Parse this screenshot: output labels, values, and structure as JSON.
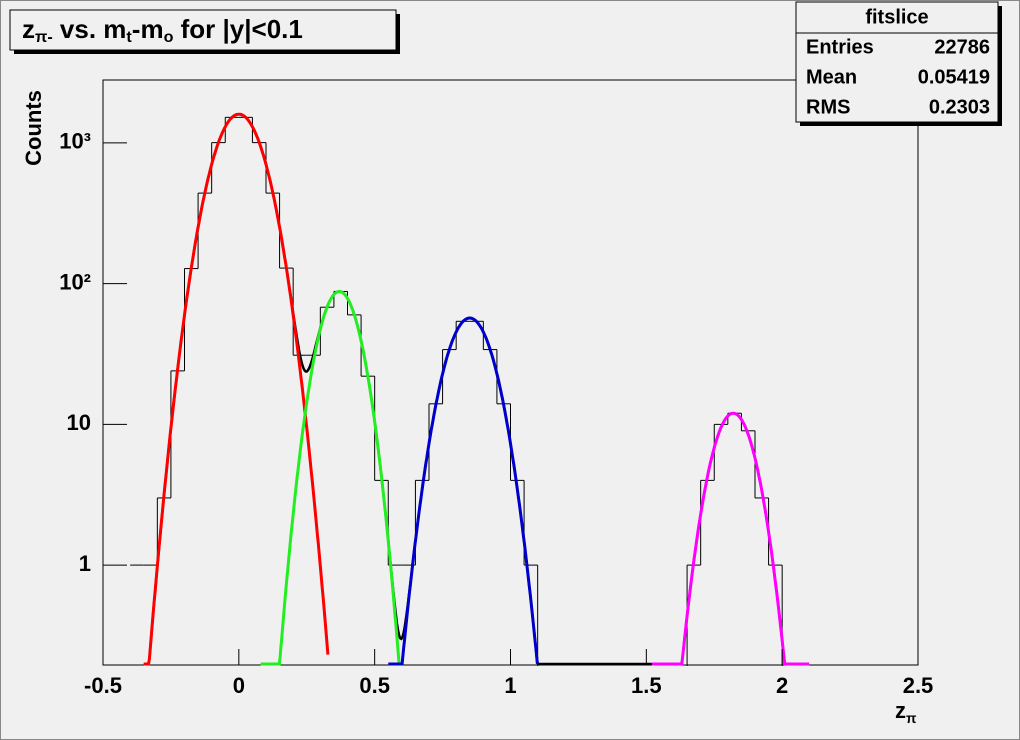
{
  "chart_data": {
    "type": "histogram",
    "title": [
      {
        "text": "z"
      },
      {
        "text": "π-",
        "sub": true
      },
      {
        "text": " vs. m"
      },
      {
        "text": "t",
        "sub": true
      },
      {
        "text": "-m"
      },
      {
        "text": "o",
        "sub": true
      },
      {
        "text": " for |y|<0.1"
      }
    ],
    "x_label": [
      {
        "text": "z"
      },
      {
        "text": "π",
        "sub": true
      }
    ],
    "y_label": "Counts",
    "log_y": true,
    "xlim": [
      -0.5,
      2.5
    ],
    "xticks": [
      -0.5,
      0,
      0.5,
      1,
      1.5,
      2,
      2.5
    ],
    "ylim": [
      0.195,
      2800
    ],
    "yticks": [
      1,
      10,
      {
        "value": 100,
        "label": "10²"
      },
      {
        "value": 1000,
        "label": "10³"
      }
    ],
    "bins": [
      -0.4,
      -0.35,
      -0.3,
      -0.25,
      -0.2,
      -0.15,
      -0.1,
      -0.05,
      0,
      0.05,
      0.1,
      0.15,
      0.2,
      0.25,
      0.3,
      0.35,
      0.4,
      0.45,
      0.5,
      0.55,
      0.6,
      0.65,
      0.7,
      0.75,
      0.8,
      0.85,
      0.9,
      0.95,
      1,
      1.05,
      1.1,
      1.15,
      1.2,
      1.25,
      1.3,
      1.35,
      1.4,
      1.45,
      1.5,
      1.55,
      1.6,
      1.65,
      1.7,
      1.75,
      1.8,
      1.85,
      1.9,
      1.95,
      2,
      2.05,
      2.1
    ],
    "counts": [
      1,
      1,
      3,
      24,
      128,
      440,
      1005,
      1520,
      1520,
      1005,
      440,
      129,
      31,
      31,
      68,
      88,
      60,
      22,
      4,
      1,
      1,
      4,
      14,
      34,
      54,
      54,
      34,
      14,
      4,
      1,
      0,
      0,
      0,
      0,
      0,
      0,
      0,
      0,
      0,
      0,
      0,
      1,
      4,
      10,
      12,
      9,
      3,
      1,
      0,
      0
    ],
    "color": "#000000",
    "total_fit_color": "#000000",
    "fits": [
      {
        "color": "#ff0000",
        "constant": 1600,
        "mean": 0,
        "sigma": 0.078,
        "xrange": [
          -0.35,
          0.33
        ]
      },
      {
        "color": "#22ee22",
        "constant": 88,
        "mean": 0.37,
        "sigma": 0.063,
        "xrange": [
          0.08,
          0.6
        ]
      },
      {
        "color": "#0000cc",
        "constant": 57,
        "mean": 0.85,
        "sigma": 0.074,
        "xrange": [
          0.55,
          1.1
        ]
      },
      {
        "color": "#ff00ff",
        "constant": 12,
        "mean": 1.82,
        "sigma": 0.066,
        "xrange": [
          1.52,
          2.1
        ]
      }
    ],
    "stats": {
      "title": "fitslice",
      "rows": [
        [
          "Entries",
          22786
        ],
        [
          "Mean",
          0.05419
        ],
        [
          "RMS",
          0.2303
        ]
      ]
    }
  }
}
